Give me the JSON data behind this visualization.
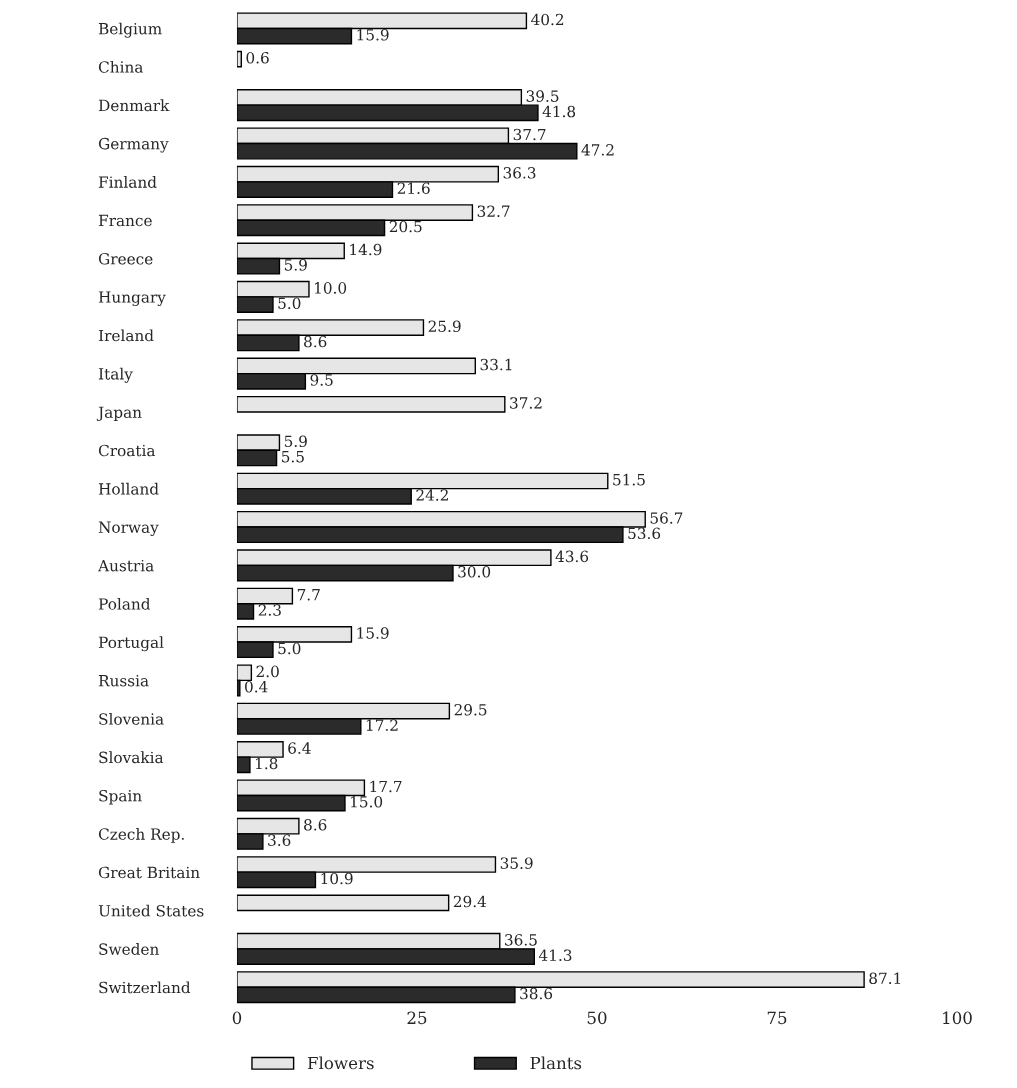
{
  "chart_data": {
    "type": "bar",
    "orientation": "horizontal",
    "categories": [
      "Belgium",
      "China",
      "Denmark",
      "Germany",
      "Finland",
      "France",
      "Greece",
      "Hungary",
      "Ireland",
      "Italy",
      "Japan",
      "Croatia",
      "Holland",
      "Norway",
      "Austria",
      "Poland",
      "Portugal",
      "Russia",
      "Slovenia",
      "Slovakia",
      "Spain",
      "Czech Rep.",
      "Great Britain",
      "United States",
      "Sweden",
      "Switzerland"
    ],
    "series": [
      {
        "name": "Flowers",
        "color": "#e6e6e6",
        "values": [
          40.2,
          0.6,
          39.5,
          37.7,
          36.3,
          32.7,
          14.9,
          10,
          25.9,
          33.1,
          37.2,
          5.9,
          51.5,
          56.7,
          43.6,
          7.7,
          15.9,
          2,
          29.5,
          6.4,
          17.7,
          8.6,
          35.9,
          29.4,
          36.5,
          87.1
        ],
        "value_labels": [
          "40.2",
          "0.6",
          "39.5",
          "37.7",
          "36.3",
          "32.7",
          "14.9",
          "10.0",
          "25.9",
          "33.1",
          "37.2",
          "5.9",
          "51.5",
          "56.7",
          "43.6",
          "7.7",
          "15.9",
          "2.0",
          "29.5",
          "6.4",
          "17.7",
          "8.6",
          "35.9",
          "29.4",
          "36.5",
          "87.1"
        ]
      },
      {
        "name": "Plants",
        "color": "#2b2b2b",
        "values": [
          15.9,
          null,
          41.8,
          47.2,
          21.6,
          20.5,
          5.9,
          5,
          8.6,
          9.5,
          null,
          5.5,
          24.2,
          53.6,
          30,
          2.3,
          5,
          0.4,
          17.2,
          1.8,
          15,
          3.6,
          10.9,
          null,
          41.3,
          38.6
        ],
        "value_labels": [
          "15.9",
          null,
          "41.8",
          "47.2",
          "21.6",
          "20.5",
          "5.9",
          "5.0",
          "8.6",
          "9.5",
          null,
          "5.5",
          "24.2",
          "53.6",
          "30.0",
          "2.3",
          "5.0",
          "0.4",
          "17.2",
          "1.8",
          "15.0",
          "3.6",
          "10.9",
          null,
          "41.3",
          "38.6"
        ]
      }
    ],
    "xlim": [
      0,
      100
    ],
    "xticks": [
      0,
      25,
      50,
      75,
      100
    ],
    "grid": false,
    "legend": "bottom"
  }
}
